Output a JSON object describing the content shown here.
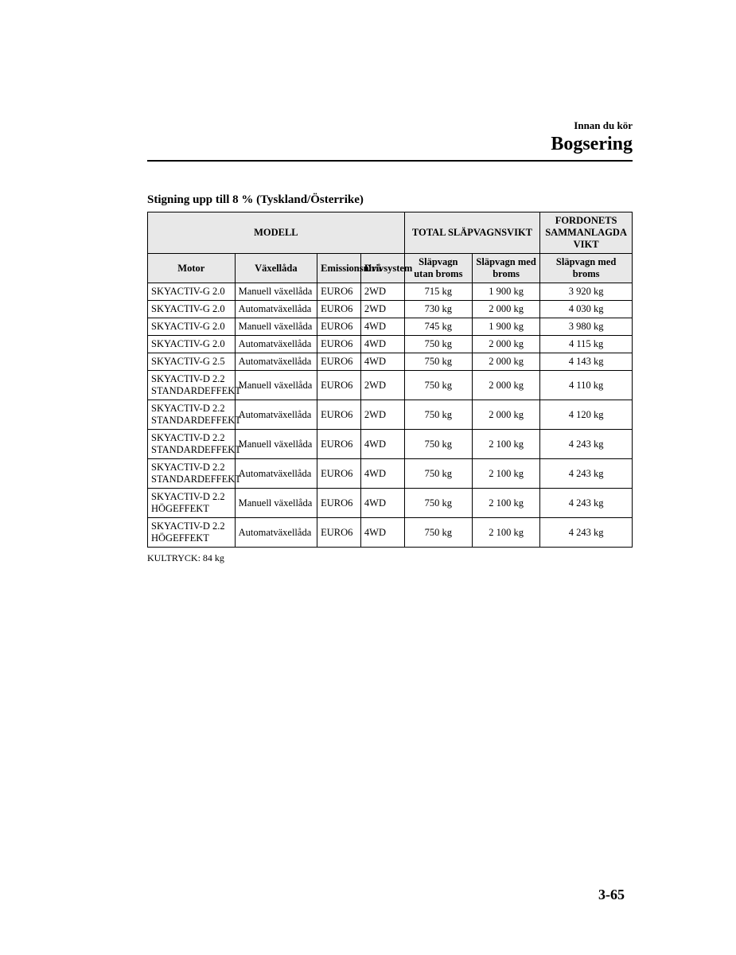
{
  "page": {
    "section_label": "Innan du kör",
    "section_title": "Bogsering",
    "subheading": "Stigning upp till 8 % (Tyskland/Österrike)",
    "footnote": "KULTRYCK: 84 kg",
    "page_number": "3-65"
  },
  "table": {
    "header_top": {
      "modell": "MODELL",
      "total": "TOTAL SLÄPVAGNSVIKT",
      "combined": "FORDONETS SAMMANLAGDA VIKT"
    },
    "header_sub": {
      "motor": "Motor",
      "gearbox": "Växellåda",
      "emission": "Emissionsnivå",
      "drive": "Drivsystem",
      "no_brake": "Släpvagn utan broms",
      "with_brake": "Släpvagn med broms",
      "combined": "Släpvagn med broms"
    },
    "rows": [
      {
        "motor": "SKYACTIV-G 2.0",
        "gearbox": "Manuell växellåda",
        "emission": "EURO6",
        "drive": "2WD",
        "no_brake": "715 kg",
        "with_brake": "1 900 kg",
        "combined": "3 920 kg"
      },
      {
        "motor": "SKYACTIV-G 2.0",
        "gearbox": "Automatväxellåda",
        "emission": "EURO6",
        "drive": "2WD",
        "no_brake": "730 kg",
        "with_brake": "2 000 kg",
        "combined": "4 030 kg"
      },
      {
        "motor": "SKYACTIV-G 2.0",
        "gearbox": "Manuell växellåda",
        "emission": "EURO6",
        "drive": "4WD",
        "no_brake": "745 kg",
        "with_brake": "1 900 kg",
        "combined": "3 980 kg"
      },
      {
        "motor": "SKYACTIV-G 2.0",
        "gearbox": "Automatväxellåda",
        "emission": "EURO6",
        "drive": "4WD",
        "no_brake": "750 kg",
        "with_brake": "2 000 kg",
        "combined": "4 115 kg"
      },
      {
        "motor": "SKYACTIV-G 2.5",
        "gearbox": "Automatväxellåda",
        "emission": "EURO6",
        "drive": "4WD",
        "no_brake": "750 kg",
        "with_brake": "2 000 kg",
        "combined": "4 143 kg"
      },
      {
        "motor": "SKYACTIV-D 2.2 STANDARDEFFEKT",
        "gearbox": "Manuell växellåda",
        "emission": "EURO6",
        "drive": "2WD",
        "no_brake": "750 kg",
        "with_brake": "2 000 kg",
        "combined": "4 110 kg"
      },
      {
        "motor": "SKYACTIV-D 2.2 STANDARDEFFEKT",
        "gearbox": "Automatväxellåda",
        "emission": "EURO6",
        "drive": "2WD",
        "no_brake": "750 kg",
        "with_brake": "2 000 kg",
        "combined": "4 120 kg"
      },
      {
        "motor": "SKYACTIV-D 2.2 STANDARDEFFEKT",
        "gearbox": "Manuell växellåda",
        "emission": "EURO6",
        "drive": "4WD",
        "no_brake": "750 kg",
        "with_brake": "2 100 kg",
        "combined": "4 243 kg"
      },
      {
        "motor": "SKYACTIV-D 2.2 STANDARDEFFEKT",
        "gearbox": "Automatväxellåda",
        "emission": "EURO6",
        "drive": "4WD",
        "no_brake": "750 kg",
        "with_brake": "2 100 kg",
        "combined": "4 243 kg"
      },
      {
        "motor": "SKYACTIV-D 2.2 HÖGEFFEKT",
        "gearbox": "Manuell växellåda",
        "emission": "EURO6",
        "drive": "4WD",
        "no_brake": "750 kg",
        "with_brake": "2 100 kg",
        "combined": "4 243 kg"
      },
      {
        "motor": "SKYACTIV-D 2.2 HÖGEFFEKT",
        "gearbox": "Automatväxellåda",
        "emission": "EURO6",
        "drive": "4WD",
        "no_brake": "750 kg",
        "with_brake": "2 100 kg",
        "combined": "4 243 kg"
      }
    ]
  },
  "style": {
    "header_bg": "#e8e8e8",
    "border_color": "#000000",
    "body_font": "Times New Roman",
    "body_font_size_pt": 12.5,
    "section_title_size_pt": 24,
    "subheading_size_pt": 15,
    "page_bg": "#ffffff"
  }
}
